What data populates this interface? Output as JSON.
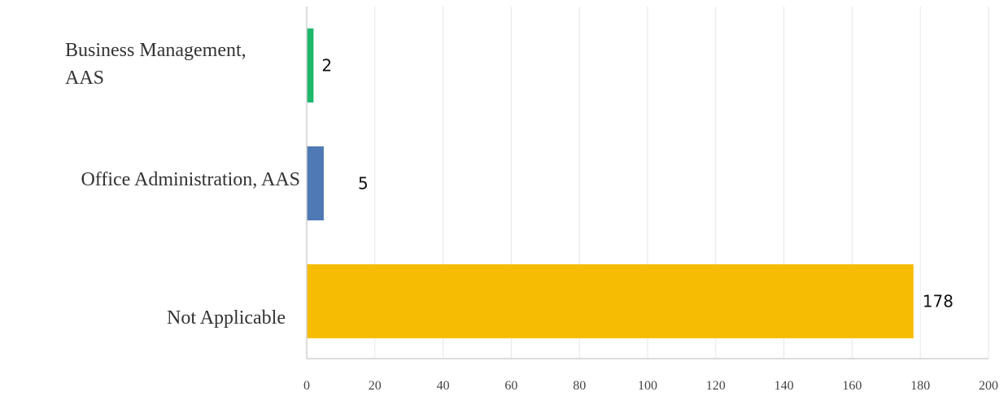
{
  "chart_data": {
    "type": "bar",
    "orientation": "horizontal",
    "categories": [
      "Business Management, AAS",
      "Office Administration, AAS",
      "Not Applicable"
    ],
    "values": [
      2,
      5,
      178
    ],
    "data_labels": [
      "2",
      "5",
      "178"
    ],
    "colors": [
      "#1db86a",
      "#4f79b4",
      "#f6bc03"
    ],
    "xlim": [
      0,
      200
    ],
    "x_ticks": [
      0,
      20,
      40,
      60,
      80,
      100,
      120,
      140,
      160,
      180,
      200
    ],
    "grid": true,
    "title": "",
    "xlabel": "",
    "ylabel": ""
  }
}
